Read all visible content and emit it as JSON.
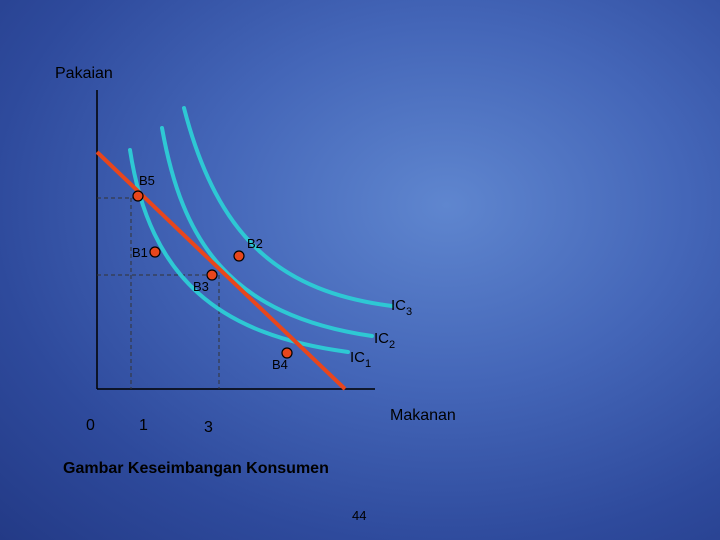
{
  "axes": {
    "y_label": "Pakaian",
    "x_label": "Makanan",
    "x_ticks": [
      "0",
      "1",
      "3"
    ]
  },
  "points": [
    {
      "label": "B5"
    },
    {
      "label": "B1"
    },
    {
      "label": "B2"
    },
    {
      "label": "B3"
    },
    {
      "label": "B4"
    }
  ],
  "curves": [
    {
      "label": "IC",
      "sub": "1"
    },
    {
      "label": "IC",
      "sub": "2"
    },
    {
      "label": "IC",
      "sub": "3"
    }
  ],
  "caption": "Gambar Keseimbangan Konsumen",
  "page_number": "44",
  "colors": {
    "indifference_curve": "#2ec8d4",
    "budget_line": "#e8461c",
    "point_fill": "#e8461c",
    "axis": "#000000"
  }
}
